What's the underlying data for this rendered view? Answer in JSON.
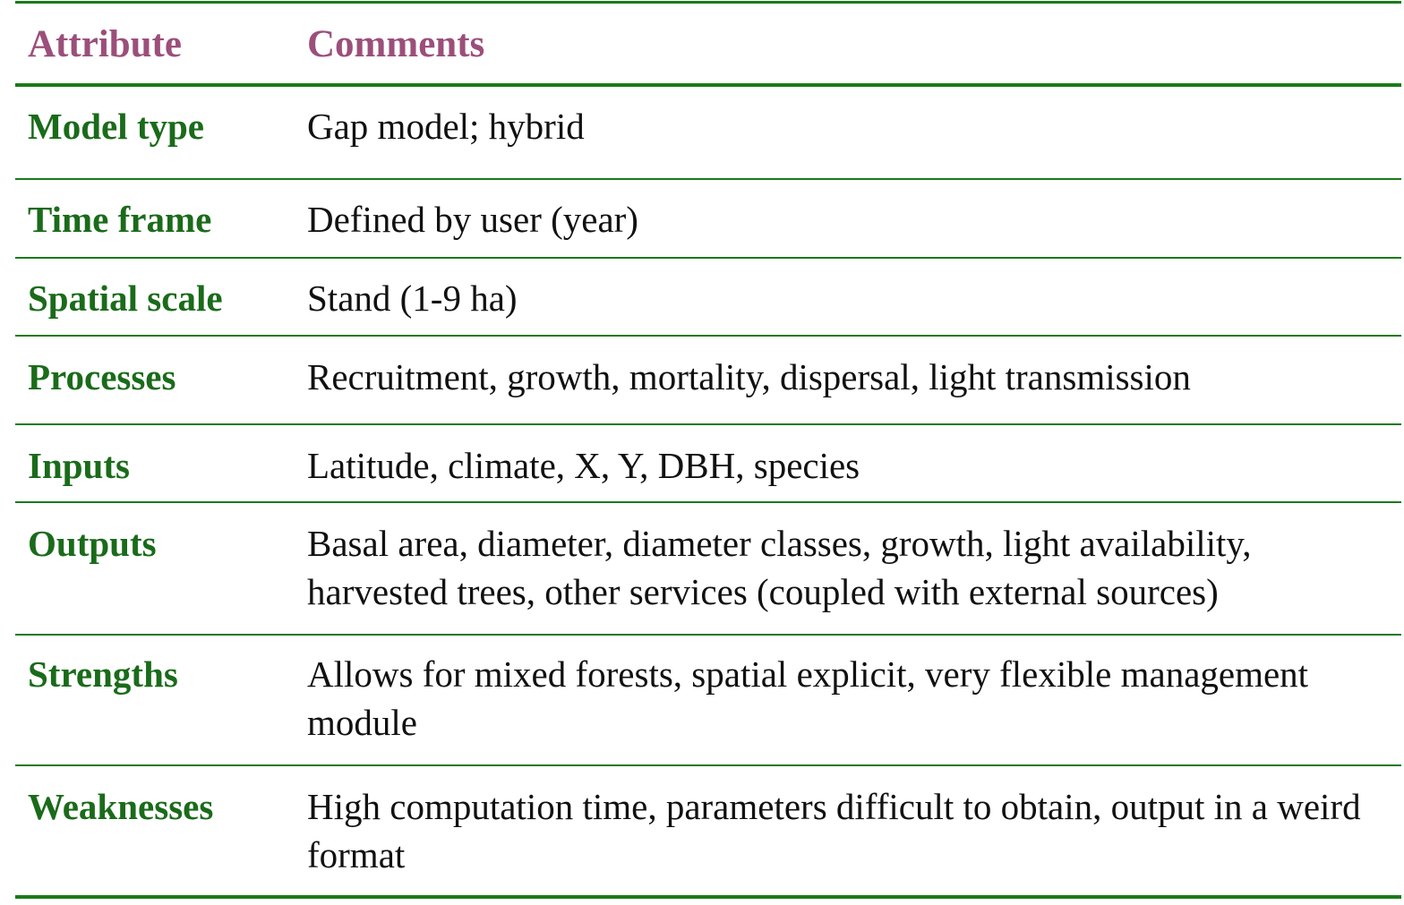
{
  "header": {
    "attribute": "Attribute",
    "comments": "Comments"
  },
  "rows": [
    {
      "attribute": "Model type",
      "comment": "Gap model; hybrid"
    },
    {
      "attribute": "Time frame",
      "comment": "Defined by user (year)"
    },
    {
      "attribute": "Spatial scale",
      "comment": "Stand (1-9 ha)"
    },
    {
      "attribute": "Processes",
      "comment": "Recruitment, growth, mortality, dispersal, light transmission"
    },
    {
      "attribute": "Inputs",
      "comment": "Latitude, climate, X, Y, DBH, species"
    },
    {
      "attribute": "Outputs",
      "comment": "Basal area, diameter, diameter classes, growth, light availability, harvested trees, other services (coupled with external sources)"
    },
    {
      "attribute": "Strengths",
      "comment": "Allows for mixed forests, spatial explicit, very flexible management module"
    },
    {
      "attribute": "Weaknesses",
      "comment": "High computation time, parameters difficult to obtain, output in a weird format"
    }
  ],
  "colors": {
    "rule": "#1a7a1a",
    "header_text": "#9b4f7a",
    "label_text": "#1a6b1a",
    "body_text": "#111111"
  }
}
